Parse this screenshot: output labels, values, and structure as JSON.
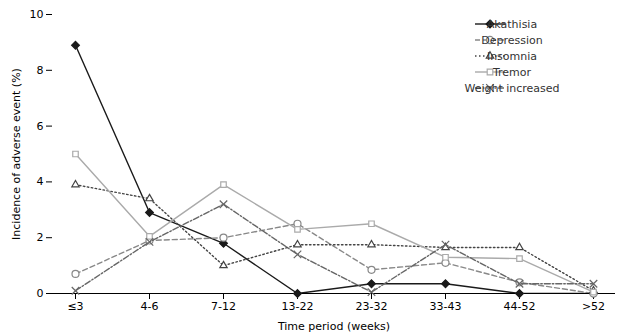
{
  "chart_data": {
    "type": "line",
    "categories": [
      "≤3",
      "4-6",
      "7-12",
      "13-22",
      "23-32",
      "33-43",
      "44-52",
      ">52"
    ],
    "series": [
      {
        "name": "Akathisia",
        "color": "#1a1a1a",
        "marker": "diamond",
        "line_style": "solid",
        "values": [
          8.9,
          2.9,
          1.8,
          0.0,
          0.35,
          0.35,
          0.0,
          0.0
        ]
      },
      {
        "name": "Depression",
        "color": "#888888",
        "marker": "circle",
        "line_style": "dashed",
        "values": [
          0.7,
          1.9,
          2.0,
          2.5,
          0.85,
          1.1,
          0.4,
          0.0
        ]
      },
      {
        "name": "Insomnia",
        "color": "#444444",
        "marker": "triangle",
        "line_style": "dotted",
        "values": [
          3.9,
          3.4,
          1.0,
          1.75,
          1.75,
          1.65,
          1.65,
          0.1
        ]
      },
      {
        "name": "Tremor",
        "color": "#aaaaaa",
        "marker": "square",
        "line_style": "solid",
        "values": [
          5.0,
          2.05,
          3.9,
          2.3,
          2.5,
          1.3,
          1.25,
          0.05
        ]
      },
      {
        "name": "Weight increased",
        "color": "#666666",
        "marker": "x",
        "line_style": "dashdot",
        "values": [
          0.1,
          1.85,
          3.2,
          1.4,
          0.05,
          1.75,
          0.35,
          0.35
        ]
      }
    ],
    "xlabel": "Time period (weeks)",
    "ylabel": "Incidence of adverse event (%)",
    "ylim": [
      0,
      10
    ],
    "yticks": [
      0,
      2,
      4,
      6,
      8,
      10
    ],
    "grid": false,
    "legend": "upper right"
  }
}
